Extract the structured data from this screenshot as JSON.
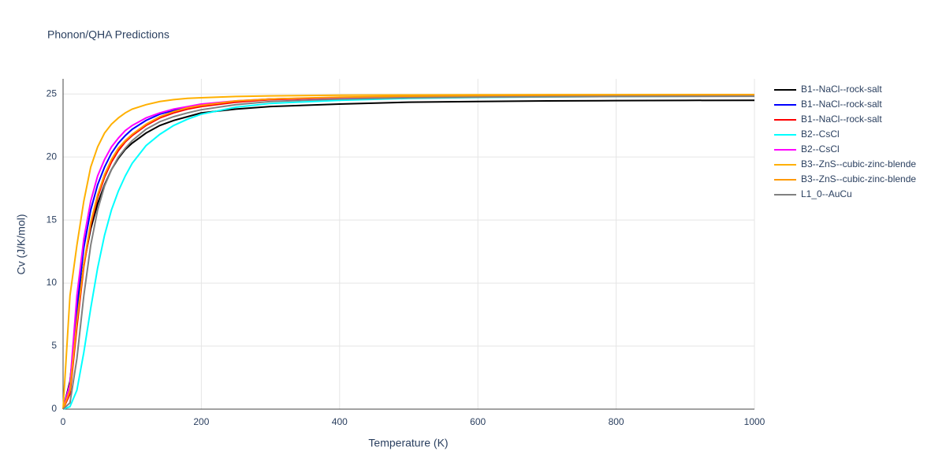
{
  "chart_data": {
    "type": "line",
    "title": "Phonon/QHA Predictions",
    "x_label": "Temperature (K)",
    "y_label": "Cv (J/K/mol)",
    "x": [
      0,
      10,
      20,
      30,
      40,
      50,
      60,
      70,
      80,
      90,
      100,
      120,
      140,
      160,
      180,
      200,
      250,
      300,
      400,
      500,
      600,
      700,
      800,
      900,
      1000
    ],
    "series": [
      {
        "name": "B1--NaCl--rock-salt",
        "color": "#000000",
        "values": [
          0,
          2.2,
          7.5,
          11.5,
          14.3,
          16.3,
          17.8,
          19,
          19.9,
          20.6,
          21.1,
          21.9,
          22.5,
          22.9,
          23.2,
          23.5,
          23.8,
          24.0,
          24.2,
          24.35,
          24.4,
          24.45,
          24.47,
          24.49,
          24.5
        ]
      },
      {
        "name": "B1--NaCl--rock-salt",
        "color": "#0000ff",
        "values": [
          0,
          1.8,
          8,
          12.8,
          15.8,
          17.8,
          19.2,
          20.3,
          21.1,
          21.7,
          22.2,
          22.9,
          23.4,
          23.7,
          23.9,
          24.1,
          24.4,
          24.6,
          24.7,
          24.8,
          24.82,
          24.83,
          24.84,
          24.85,
          24.85
        ]
      },
      {
        "name": "B1--NaCl--rock-salt",
        "color": "#ff0000",
        "values": [
          0,
          1.2,
          6.5,
          11.3,
          14.6,
          16.8,
          18.4,
          19.6,
          20.5,
          21.2,
          21.7,
          22.5,
          23.1,
          23.5,
          23.8,
          24.0,
          24.35,
          24.55,
          24.7,
          24.78,
          24.82,
          24.85,
          24.86,
          24.87,
          24.88
        ]
      },
      {
        "name": "B2--CsCl",
        "color": "#00ffff",
        "values": [
          0,
          0.2,
          1.5,
          4.5,
          8,
          11.2,
          13.8,
          15.8,
          17.3,
          18.5,
          19.5,
          20.9,
          21.8,
          22.5,
          23.0,
          23.4,
          23.95,
          24.25,
          24.5,
          24.65,
          24.72,
          24.77,
          24.8,
          24.82,
          24.83
        ]
      },
      {
        "name": "B2--CsCl",
        "color": "#ff00ff",
        "values": [
          0,
          2,
          9,
          13.5,
          16.5,
          18.5,
          19.8,
          20.8,
          21.5,
          22.1,
          22.5,
          23.1,
          23.5,
          23.8,
          24.0,
          24.2,
          24.45,
          24.6,
          24.72,
          24.78,
          24.82,
          24.84,
          24.85,
          24.86,
          24.87
        ]
      },
      {
        "name": "B3--ZnS--cubic-zinc-blende",
        "color": "#ffb000",
        "values": [
          0,
          9,
          13,
          16.5,
          19.2,
          20.8,
          21.9,
          22.6,
          23.1,
          23.5,
          23.8,
          24.15,
          24.4,
          24.55,
          24.65,
          24.7,
          24.8,
          24.85,
          24.9,
          24.92,
          24.93,
          24.94,
          24.94,
          24.95,
          24.95
        ]
      },
      {
        "name": "B3--ZnS--cubic-zinc-blende",
        "color": "#ff9900",
        "values": [
          0,
          1.5,
          7,
          11.5,
          14.8,
          17,
          18.6,
          19.8,
          20.7,
          21.3,
          21.8,
          22.6,
          23.2,
          23.6,
          23.9,
          24.1,
          24.45,
          24.6,
          24.75,
          24.82,
          24.85,
          24.87,
          24.88,
          24.89,
          24.9
        ]
      },
      {
        "name": "L1_0--AuCu",
        "color": "#808080",
        "values": [
          0,
          0.5,
          4,
          9,
          13,
          15.8,
          17.7,
          19,
          20,
          20.7,
          21.3,
          22.2,
          22.8,
          23.2,
          23.5,
          23.75,
          24.15,
          24.4,
          24.6,
          24.7,
          24.75,
          24.78,
          24.8,
          24.81,
          24.82
        ]
      }
    ],
    "xlim": [
      0,
      1000
    ],
    "ylim": [
      0,
      26.2
    ],
    "xticks": [
      0,
      200,
      400,
      600,
      800,
      1000
    ],
    "yticks": [
      0,
      5,
      10,
      15,
      20,
      25
    ],
    "grid": true,
    "legend": "right"
  }
}
